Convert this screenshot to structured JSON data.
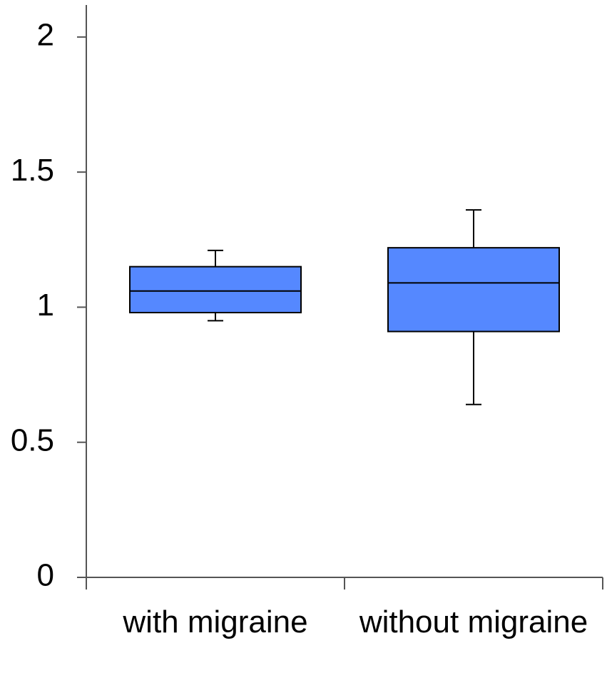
{
  "chart_data": {
    "type": "box",
    "categories": [
      "with migraine",
      "without migraine"
    ],
    "boxes": [
      {
        "low": 0.95,
        "q1": 0.98,
        "median": 1.06,
        "q3": 1.15,
        "high": 1.21
      },
      {
        "low": 0.64,
        "q1": 0.91,
        "median": 1.09,
        "q3": 1.22,
        "high": 1.36
      }
    ],
    "color": "#5588ff",
    "ylim": [
      0,
      2.1
    ],
    "yticks": [
      0,
      0.5,
      1,
      1.5,
      2
    ]
  }
}
